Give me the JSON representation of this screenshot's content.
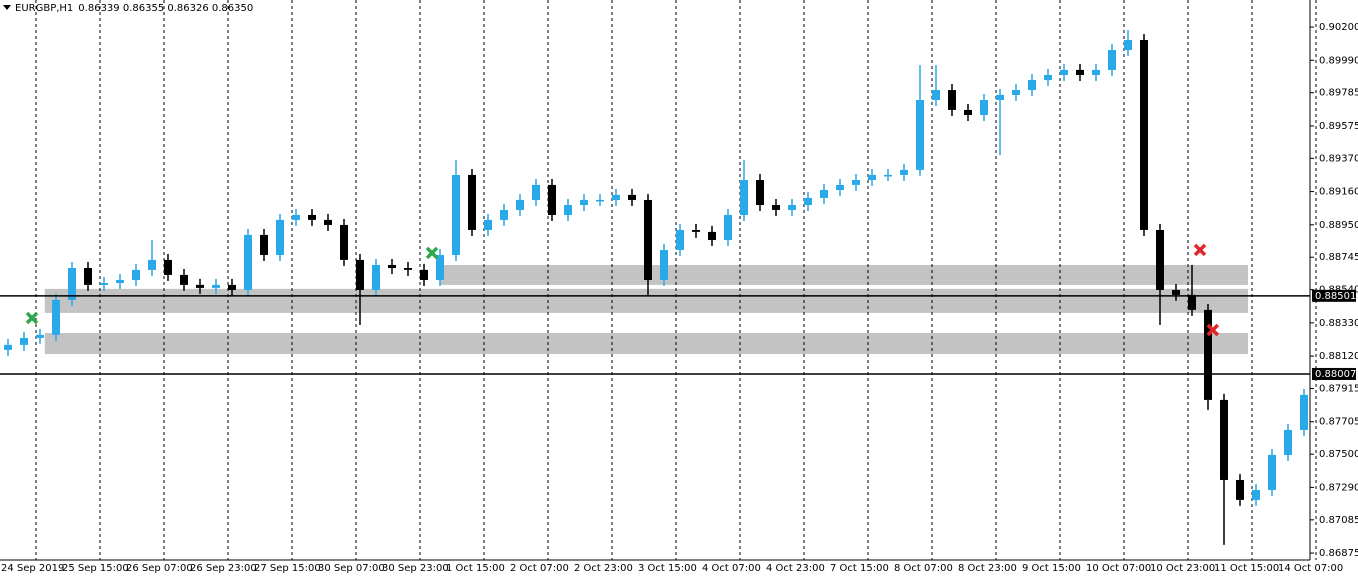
{
  "chart_data": {
    "type": "candlestick",
    "title": "EURGBP,H1",
    "subtitle": "0.86339 0.86355 0.86326 0.86350",
    "up_color": "#29a9e8",
    "down_color": "#000000",
    "zone_color": "#c3c3c3",
    "grid": true,
    "ylim": [
      0.86831,
      0.90371
    ],
    "yticks": [
      {
        "value": 0.902,
        "label": "0.90200"
      },
      {
        "value": 0.8999,
        "label": "0.89990"
      },
      {
        "value": 0.89785,
        "label": "0.89785"
      },
      {
        "value": 0.89575,
        "label": "0.89575"
      },
      {
        "value": 0.8937,
        "label": "0.89370"
      },
      {
        "value": 0.8916,
        "label": "0.89160"
      },
      {
        "value": 0.8895,
        "label": "0.88950"
      },
      {
        "value": 0.88745,
        "label": "0.88745"
      },
      {
        "value": 0.8854,
        "label": "0.88540"
      },
      {
        "value": 0.8833,
        "label": "0.88330"
      },
      {
        "value": 0.8812,
        "label": "0.88120"
      },
      {
        "value": 0.87915,
        "label": "0.87915"
      },
      {
        "value": 0.87705,
        "label": "0.87705"
      },
      {
        "value": 0.875,
        "label": "0.87500"
      },
      {
        "value": 0.8729,
        "label": "0.87290"
      },
      {
        "value": 0.87085,
        "label": "0.87085"
      },
      {
        "value": 0.86875,
        "label": "0.86875"
      }
    ],
    "hlines": [
      {
        "value": 0.88501,
        "label": "0.88501"
      },
      {
        "value": 0.88007,
        "label": "0.88007"
      }
    ],
    "zones": [
      {
        "from": 0.8857,
        "to": 0.88696,
        "start": 27,
        "end": 77.5
      },
      {
        "from": 0.88393,
        "to": 0.88545,
        "start": 2.3,
        "end": 77.5
      },
      {
        "from": 0.88133,
        "to": 0.88266,
        "start": 2.3,
        "end": 77.5
      }
    ],
    "markers": [
      {
        "index": 1.5,
        "price": 0.88361,
        "color": "#2ea84a"
      },
      {
        "index": 26.5,
        "price": 0.88772,
        "color": "#2ea84a"
      },
      {
        "index": 74.5,
        "price": 0.88791,
        "color": "#e0242b"
      },
      {
        "index": 75.3,
        "price": 0.88285,
        "color": "#e0242b"
      }
    ],
    "categories": [
      "24 Sep 2019",
      null,
      null,
      null,
      "25 Sep 15:00",
      null,
      null,
      null,
      "26 Sep 07:00",
      null,
      null,
      null,
      "26 Sep 23:00",
      null,
      null,
      null,
      "27 Sep 15:00",
      null,
      null,
      null,
      "30 Sep 07:00",
      null,
      null,
      null,
      "30 Sep 23:00",
      null,
      null,
      null,
      "1 Oct 15:00",
      null,
      null,
      null,
      "2 Oct 07:00",
      null,
      null,
      null,
      "2 Oct 23:00",
      null,
      null,
      null,
      "3 Oct 15:00",
      null,
      null,
      null,
      "4 Oct 07:00",
      null,
      null,
      null,
      "4 Oct 23:00",
      null,
      null,
      null,
      "7 Oct 15:00",
      null,
      null,
      null,
      "8 Oct 07:00",
      null,
      null,
      null,
      "8 Oct 23:00",
      null,
      null,
      null,
      "9 Oct 15:00",
      null,
      null,
      null,
      "10 Oct 07:00",
      null,
      null,
      null,
      "10 Oct 23:00",
      null,
      null,
      null,
      "11 Oct 15:00",
      null,
      null,
      null,
      "14 Oct 07:00",
      null
    ],
    "ohlc": [
      [
        0.88159,
        0.88229,
        0.88121,
        0.88191
      ],
      [
        0.88191,
        0.88273,
        0.88153,
        0.88235
      ],
      [
        0.88235,
        0.88292,
        0.88197,
        0.88254
      ],
      [
        0.88254,
        0.88513,
        0.88216,
        0.88475
      ],
      [
        0.88475,
        0.88715,
        0.88437,
        0.88677
      ],
      [
        0.88677,
        0.88715,
        0.88532,
        0.8857
      ],
      [
        0.8857,
        0.8862,
        0.88532,
        0.88582
      ],
      [
        0.88582,
        0.88639,
        0.88544,
        0.88601
      ],
      [
        0.88601,
        0.88703,
        0.88563,
        0.88665
      ],
      [
        0.88665,
        0.88854,
        0.88627,
        0.88728
      ],
      [
        0.88728,
        0.88766,
        0.88595,
        0.88633
      ],
      [
        0.88633,
        0.88671,
        0.88532,
        0.8857
      ],
      [
        0.8857,
        0.88608,
        0.88513,
        0.88551
      ],
      [
        0.88551,
        0.88608,
        0.88513,
        0.8857
      ],
      [
        0.8857,
        0.88608,
        0.885,
        0.88538
      ],
      [
        0.88538,
        0.88924,
        0.885,
        0.88886
      ],
      [
        0.88886,
        0.88924,
        0.88721,
        0.88759
      ],
      [
        0.88759,
        0.89019,
        0.88721,
        0.88981
      ],
      [
        0.88981,
        0.8905,
        0.88943,
        0.89012
      ],
      [
        0.89012,
        0.8905,
        0.88943,
        0.88981
      ],
      [
        0.88981,
        0.89019,
        0.88911,
        0.88949
      ],
      [
        0.88949,
        0.88987,
        0.8869,
        0.88728
      ],
      [
        0.88728,
        0.88766,
        0.88317,
        0.88538
      ],
      [
        0.88538,
        0.88734,
        0.885,
        0.88696
      ],
      [
        0.88696,
        0.88734,
        0.88639,
        0.88677
      ],
      [
        0.88677,
        0.88715,
        0.88627,
        0.88665
      ],
      [
        0.88665,
        0.88703,
        0.88563,
        0.88601
      ],
      [
        0.88601,
        0.88797,
        0.88563,
        0.88759
      ],
      [
        0.88759,
        0.8936,
        0.88721,
        0.89265
      ],
      [
        0.89265,
        0.89303,
        0.88879,
        0.88917
      ],
      [
        0.88917,
        0.89019,
        0.88879,
        0.88981
      ],
      [
        0.88981,
        0.89082,
        0.88943,
        0.89044
      ],
      [
        0.89044,
        0.89145,
        0.89006,
        0.89107
      ],
      [
        0.89107,
        0.8924,
        0.89069,
        0.89202
      ],
      [
        0.89202,
        0.8924,
        0.88974,
        0.89012
      ],
      [
        0.89012,
        0.89113,
        0.88974,
        0.89075
      ],
      [
        0.89075,
        0.89145,
        0.89037,
        0.89107
      ],
      [
        0.89107,
        0.89145,
        0.89069,
        0.89107
      ],
      [
        0.89107,
        0.89177,
        0.89069,
        0.89139
      ],
      [
        0.89139,
        0.89177,
        0.89069,
        0.89107
      ],
      [
        0.89107,
        0.89145,
        0.88507,
        0.88601
      ],
      [
        0.88601,
        0.88829,
        0.88563,
        0.88791
      ],
      [
        0.88791,
        0.88955,
        0.88753,
        0.88917
      ],
      [
        0.88917,
        0.88955,
        0.88867,
        0.88905
      ],
      [
        0.88905,
        0.88943,
        0.88816,
        0.88854
      ],
      [
        0.88854,
        0.8905,
        0.88816,
        0.89012
      ],
      [
        0.89012,
        0.8936,
        0.88974,
        0.89233
      ],
      [
        0.89233,
        0.89271,
        0.89037,
        0.89075
      ],
      [
        0.89075,
        0.89113,
        0.89006,
        0.89044
      ],
      [
        0.89044,
        0.89113,
        0.89006,
        0.89075
      ],
      [
        0.89075,
        0.89158,
        0.89037,
        0.8912
      ],
      [
        0.8912,
        0.89208,
        0.89082,
        0.8917
      ],
      [
        0.8917,
        0.8924,
        0.89132,
        0.89202
      ],
      [
        0.89202,
        0.89271,
        0.89164,
        0.89233
      ],
      [
        0.89233,
        0.89303,
        0.89195,
        0.89265
      ],
      [
        0.89265,
        0.89303,
        0.89227,
        0.89265
      ],
      [
        0.89265,
        0.89335,
        0.89227,
        0.89297
      ],
      [
        0.89297,
        0.8996,
        0.89259,
        0.89739
      ],
      [
        0.89739,
        0.8996,
        0.89701,
        0.89802
      ],
      [
        0.89802,
        0.8984,
        0.89638,
        0.89676
      ],
      [
        0.89676,
        0.89714,
        0.89606,
        0.89644
      ],
      [
        0.89644,
        0.89777,
        0.89606,
        0.89739
      ],
      [
        0.89739,
        0.89809,
        0.89391,
        0.89771
      ],
      [
        0.89771,
        0.8984,
        0.89733,
        0.89802
      ],
      [
        0.89802,
        0.89903,
        0.89764,
        0.89865
      ],
      [
        0.89865,
        0.89935,
        0.89827,
        0.89897
      ],
      [
        0.89897,
        0.89967,
        0.89859,
        0.89929
      ],
      [
        0.89929,
        0.89967,
        0.89859,
        0.89897
      ],
      [
        0.89897,
        0.89967,
        0.89859,
        0.89929
      ],
      [
        0.89929,
        0.90093,
        0.89891,
        0.90055
      ],
      [
        0.90055,
        0.90181,
        0.90017,
        0.90118
      ],
      [
        0.90118,
        0.90156,
        0.88879,
        0.88917
      ],
      [
        0.88917,
        0.88955,
        0.88317,
        0.88538
      ],
      [
        0.88538,
        0.88576,
        0.88469,
        0.88507
      ],
      [
        0.88507,
        0.88696,
        0.88374,
        0.88412
      ],
      [
        0.88412,
        0.8845,
        0.8778,
        0.87843
      ],
      [
        0.87843,
        0.87881,
        0.86927,
        0.87337
      ],
      [
        0.87337,
        0.87375,
        0.87173,
        0.87211
      ],
      [
        0.87211,
        0.87312,
        0.87173,
        0.87274
      ],
      [
        0.87274,
        0.87533,
        0.87236,
        0.87495
      ],
      [
        0.87495,
        0.87691,
        0.87457,
        0.87653
      ],
      [
        0.87653,
        0.87913,
        0.87615,
        0.87875
      ]
    ]
  }
}
